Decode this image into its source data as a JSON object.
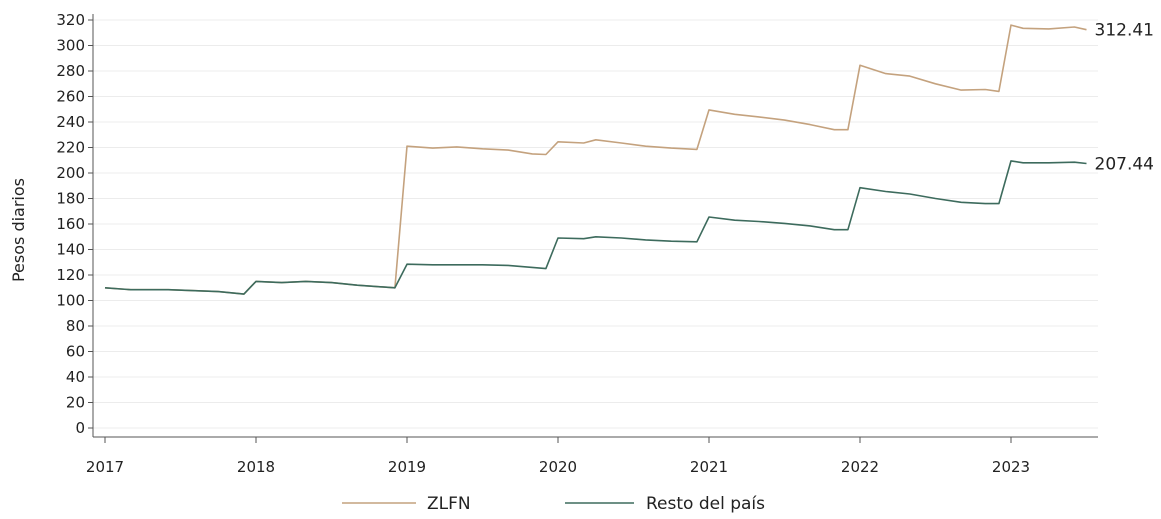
{
  "chart_data": {
    "type": "line",
    "title": "",
    "xlabel": "",
    "ylabel": "Pesos diarios",
    "ylim": [
      0,
      320
    ],
    "yticks": [
      0,
      20,
      40,
      60,
      80,
      100,
      120,
      140,
      160,
      180,
      200,
      220,
      240,
      260,
      280,
      300,
      320
    ],
    "xlim": [
      2017.0,
      2023.58
    ],
    "xticks": [
      2017,
      2018,
      2019,
      2020,
      2021,
      2022,
      2023
    ],
    "grid": "horizontal",
    "legend_position": "bottom",
    "series": [
      {
        "name": "ZLFN",
        "color": "#c4a27e",
        "end_label": "312.41",
        "x": [
          2017.0,
          2017.17,
          2017.42,
          2017.75,
          2017.92,
          2018.0,
          2018.17,
          2018.33,
          2018.5,
          2018.67,
          2018.92,
          2019.0,
          2019.17,
          2019.33,
          2019.5,
          2019.67,
          2019.83,
          2019.92,
          2020.0,
          2020.17,
          2020.25,
          2020.42,
          2020.58,
          2020.75,
          2020.92,
          2021.0,
          2021.17,
          2021.33,
          2021.5,
          2021.67,
          2021.83,
          2021.92,
          2022.0,
          2022.17,
          2022.33,
          2022.5,
          2022.67,
          2022.83,
          2022.92,
          2023.0,
          2023.08,
          2023.25,
          2023.42,
          2023.5
        ],
        "values": [
          110,
          108.5,
          108.5,
          107,
          105,
          115,
          114,
          115,
          114,
          112,
          110,
          221,
          219.5,
          220.5,
          219,
          218,
          215,
          214.5,
          224.5,
          223.5,
          226,
          223.5,
          221,
          219.5,
          218.5,
          249.5,
          246,
          244,
          241.5,
          238,
          234,
          234,
          284.5,
          278,
          276,
          270,
          265,
          265.5,
          264,
          316,
          313.5,
          313,
          314.5,
          312.41
        ]
      },
      {
        "name": "Resto del país",
        "color": "#3d6b5d",
        "end_label": "207.44",
        "x": [
          2017.0,
          2017.17,
          2017.42,
          2017.75,
          2017.92,
          2018.0,
          2018.17,
          2018.33,
          2018.5,
          2018.67,
          2018.92,
          2019.0,
          2019.17,
          2019.33,
          2019.5,
          2019.67,
          2019.83,
          2019.92,
          2020.0,
          2020.17,
          2020.25,
          2020.42,
          2020.58,
          2020.75,
          2020.92,
          2021.0,
          2021.17,
          2021.33,
          2021.5,
          2021.67,
          2021.83,
          2021.92,
          2022.0,
          2022.17,
          2022.33,
          2022.5,
          2022.67,
          2022.83,
          2022.92,
          2023.0,
          2023.08,
          2023.25,
          2023.42,
          2023.5
        ],
        "values": [
          110,
          108.5,
          108.5,
          107,
          105,
          115,
          114,
          115,
          114,
          112,
          110,
          128.5,
          128,
          128,
          128,
          127.5,
          126,
          125,
          149,
          148.5,
          150,
          149,
          147.5,
          146.5,
          146,
          165.5,
          163,
          162,
          160.5,
          158.5,
          155.5,
          155.5,
          188.5,
          185.5,
          183.5,
          180,
          177,
          176,
          176,
          209.5,
          208,
          208,
          208.5,
          207.44
        ]
      }
    ]
  }
}
